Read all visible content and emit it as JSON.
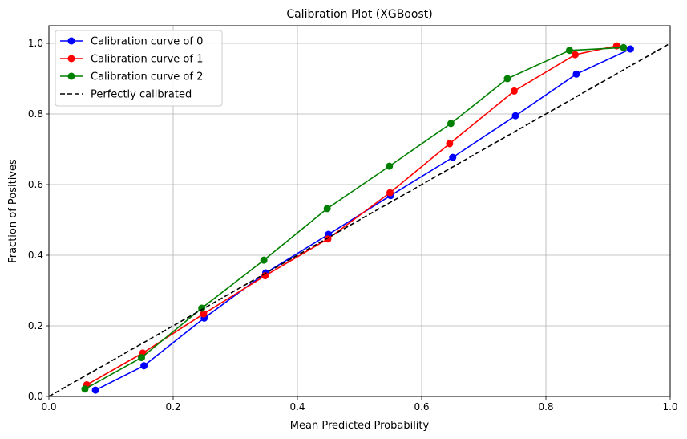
{
  "chart_data": {
    "type": "line",
    "title": "Calibration Plot (XGBoost)",
    "xlabel": "Mean Predicted Probability",
    "ylabel": "Fraction of Positives",
    "xlim": [
      0.0,
      1.0
    ],
    "ylim": [
      0.0,
      1.05
    ],
    "xticks": [
      "0.0",
      "0.2",
      "0.4",
      "0.6",
      "0.8",
      "1.0"
    ],
    "yticks": [
      "0.0",
      "0.2",
      "0.4",
      "0.6",
      "0.8",
      "1.0"
    ],
    "grid": true,
    "legend_position": "top-left",
    "series": [
      {
        "name": "Calibration curve of 0",
        "color": "#0000ff",
        "marker": "circle",
        "x": [
          0.075,
          0.153,
          0.25,
          0.349,
          0.45,
          0.55,
          0.65,
          0.751,
          0.849,
          0.936
        ],
        "y": [
          0.018,
          0.087,
          0.222,
          0.35,
          0.459,
          0.569,
          0.677,
          0.795,
          0.913,
          0.984
        ]
      },
      {
        "name": "Calibration curve of 1",
        "color": "#ff0000",
        "marker": "circle",
        "x": [
          0.061,
          0.151,
          0.249,
          0.348,
          0.449,
          0.549,
          0.645,
          0.749,
          0.847,
          0.914
        ],
        "y": [
          0.033,
          0.123,
          0.234,
          0.342,
          0.446,
          0.577,
          0.716,
          0.865,
          0.968,
          0.993
        ]
      },
      {
        "name": "Calibration curve of 2",
        "color": "#008000",
        "marker": "circle",
        "x": [
          0.058,
          0.149,
          0.246,
          0.346,
          0.448,
          0.548,
          0.647,
          0.738,
          0.838,
          0.925
        ],
        "y": [
          0.021,
          0.11,
          0.25,
          0.386,
          0.532,
          0.652,
          0.773,
          0.9,
          0.98,
          0.988
        ]
      },
      {
        "name": "Perfectly calibrated",
        "color": "#000000",
        "style": "dashed",
        "x": [
          0.0,
          1.0
        ],
        "y": [
          0.0,
          1.0
        ]
      }
    ]
  }
}
